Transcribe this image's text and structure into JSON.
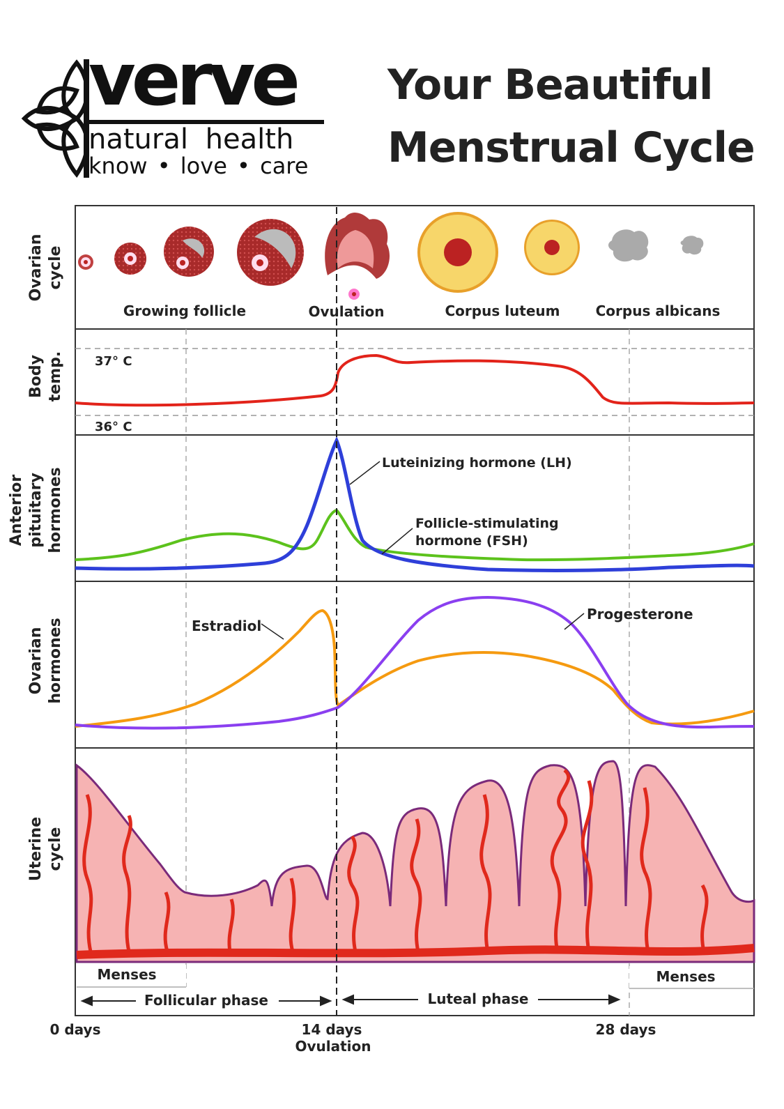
{
  "header": {
    "brand_name": "verve",
    "brand_line": "natural health",
    "brand_tagline": "know • love • care",
    "title_line1": "Your Beautiful",
    "title_line2": "Menstrual Cycle"
  },
  "panels": {
    "ovarian_cycle": "Ovarian cycle",
    "body_temp": "Body temp.",
    "anterior_pituitary": "Anterior pituitary hormones",
    "ovarian_hormones": "Ovarian hormones",
    "uterine_cycle": "Uterine cycle"
  },
  "ovarian_stages": {
    "growing_follicle": "Growing follicle",
    "ovulation": "Ovulation",
    "corpus_luteum": "Corpus luteum",
    "corpus_albicans": "Corpus albicans"
  },
  "temperature": {
    "high": "37° C",
    "low": "36° C"
  },
  "hormones": {
    "lh": "Luteinizing hormone (LH)",
    "fsh_line1": "Follicle-stimulating",
    "fsh_line2": "hormone (FSH)",
    "estradiol": "Estradiol",
    "progesterone": "Progesterone"
  },
  "phases": {
    "menses_left": "Menses",
    "menses_right": "Menses",
    "follicular": "Follicular phase",
    "luteal": "Luteal phase"
  },
  "axis": {
    "day0": "0 days",
    "day14": "14 days",
    "ovulation": "Ovulation",
    "day28": "28 days"
  },
  "colors": {
    "temp": "#e2231a",
    "lh": "#2e3fd9",
    "fsh": "#5cc21c",
    "estradiol": "#f59a10",
    "progesterone": "#8a3ff0",
    "tissue": "#f6b3b3",
    "vessel": "#e0291c",
    "follicle": "#a82a2a",
    "luteum": "#f7d66a"
  }
}
